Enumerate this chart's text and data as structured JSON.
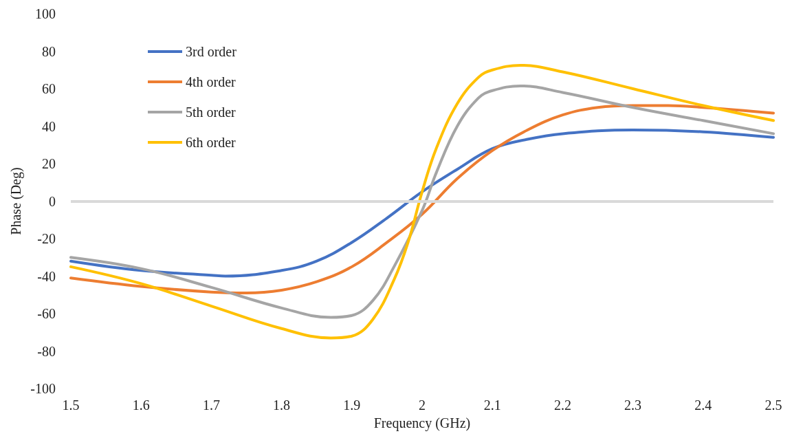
{
  "chart_data": {
    "type": "line",
    "xlabel": "Frequency (GHz)",
    "ylabel": "Phase (Deg)",
    "xlim": [
      1.5,
      2.5
    ],
    "xticks": [
      1.5,
      1.6,
      1.7,
      1.8,
      1.9,
      2,
      2.1,
      2.2,
      2.3,
      2.4,
      2.5
    ],
    "ylim": [
      -100,
      100
    ],
    "yticks": [
      -100,
      -80,
      -60,
      -40,
      -20,
      0,
      20,
      40,
      60,
      80,
      100
    ],
    "grid": false,
    "legend": "top left",
    "marker": "none",
    "line_style": "solid",
    "ref_lines": [
      {
        "axis": "y",
        "value": 0,
        "color": "#d9d9d9"
      }
    ],
    "series": [
      {
        "name": "3rd order",
        "color": "#4472c4",
        "x": [
          1.5,
          1.6,
          1.7,
          1.72,
          1.8,
          1.85,
          1.9,
          1.95,
          2.0,
          2.05,
          2.1,
          2.15,
          2.2,
          2.3,
          2.4,
          2.5
        ],
        "values": [
          -32,
          -37,
          -39.5,
          -40,
          -37,
          -32,
          -22,
          -9,
          5,
          17,
          28,
          33,
          36,
          38,
          37,
          34
        ]
      },
      {
        "name": "4th order",
        "color": "#ed7d31",
        "x": [
          1.5,
          1.6,
          1.7,
          1.75,
          1.8,
          1.85,
          1.9,
          1.95,
          2.0,
          2.05,
          2.1,
          2.15,
          2.2,
          2.25,
          2.3,
          2.35,
          2.4,
          2.5
        ],
        "values": [
          -41,
          -45.5,
          -48.5,
          -49,
          -47.5,
          -43,
          -35,
          -22,
          -7,
          12,
          27,
          38,
          46,
          50,
          51,
          51,
          50,
          47
        ]
      },
      {
        "name": "5th order",
        "color": "#a5a5a5",
        "x": [
          1.5,
          1.6,
          1.7,
          1.8,
          1.87,
          1.9,
          1.93,
          1.96,
          2.0,
          2.02,
          2.05,
          2.08,
          2.1,
          2.14,
          2.2,
          2.3,
          2.4,
          2.5
        ],
        "values": [
          -30,
          -36,
          -46,
          -57,
          -62,
          -61,
          -53,
          -35,
          -5,
          15,
          40,
          55,
          59,
          61.5,
          58,
          50,
          43,
          36
        ]
      },
      {
        "name": "6th order",
        "color": "#ffc000",
        "x": [
          1.5,
          1.6,
          1.7,
          1.8,
          1.87,
          1.9,
          1.93,
          1.96,
          1.98,
          2.0,
          2.02,
          2.05,
          2.08,
          2.1,
          2.14,
          2.2,
          2.3,
          2.4,
          2.5
        ],
        "values": [
          -35,
          -44,
          -56,
          -68,
          -73,
          -72,
          -63,
          -42,
          -22,
          5,
          28,
          52,
          66,
          70,
          72.5,
          69,
          60,
          51,
          43
        ]
      }
    ]
  }
}
